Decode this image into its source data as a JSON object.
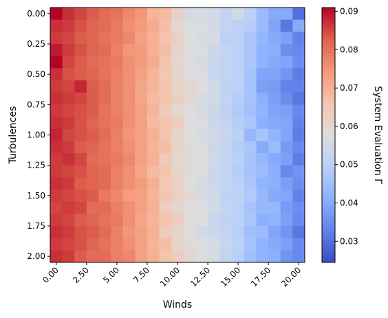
{
  "chart_data": {
    "type": "heatmap",
    "title": "",
    "xlabel": "Winds",
    "ylabel": "Turbulences",
    "colorbar_label": "System Evaluation Γ",
    "colormap": "coolwarm",
    "x_range": [
      0,
      20
    ],
    "y_range": [
      0,
      2
    ],
    "n_cols": 21,
    "n_rows": 21,
    "x_ticks": [
      "0.00",
      "2.50",
      "5.00",
      "7.50",
      "10.00",
      "12.50",
      "15.00",
      "17.50",
      "20.00"
    ],
    "y_ticks": [
      "0.00",
      "0.25",
      "0.50",
      "0.75",
      "1.00",
      "1.25",
      "1.50",
      "1.75",
      "2.00"
    ],
    "colorbar_ticks": [
      "0.03",
      "0.04",
      "0.05",
      "0.06",
      "0.07",
      "0.08",
      "0.09"
    ],
    "colorbar_range": [
      0.0245,
      0.091
    ],
    "grid": false,
    "values": [
      [
        0.091,
        0.087,
        0.085,
        0.083,
        0.081,
        0.08,
        0.077,
        0.075,
        0.069,
        0.068,
        0.062,
        0.056,
        0.056,
        0.055,
        0.052,
        0.055,
        0.05,
        0.044,
        0.04,
        0.04,
        0.03
      ],
      [
        0.087,
        0.086,
        0.084,
        0.082,
        0.081,
        0.079,
        0.076,
        0.074,
        0.071,
        0.067,
        0.06,
        0.057,
        0.057,
        0.055,
        0.052,
        0.05,
        0.049,
        0.044,
        0.039,
        0.031,
        0.04
      ],
      [
        0.086,
        0.085,
        0.083,
        0.082,
        0.08,
        0.079,
        0.077,
        0.073,
        0.07,
        0.066,
        0.062,
        0.058,
        0.056,
        0.056,
        0.05,
        0.05,
        0.047,
        0.043,
        0.04,
        0.038,
        0.033
      ],
      [
        0.089,
        0.086,
        0.084,
        0.082,
        0.081,
        0.078,
        0.075,
        0.074,
        0.07,
        0.067,
        0.061,
        0.058,
        0.057,
        0.054,
        0.052,
        0.05,
        0.047,
        0.042,
        0.041,
        0.035,
        0.034
      ],
      [
        0.091,
        0.085,
        0.083,
        0.081,
        0.08,
        0.079,
        0.076,
        0.074,
        0.071,
        0.066,
        0.06,
        0.057,
        0.056,
        0.053,
        0.052,
        0.05,
        0.047,
        0.042,
        0.04,
        0.039,
        0.035
      ],
      [
        0.087,
        0.084,
        0.083,
        0.082,
        0.08,
        0.078,
        0.076,
        0.073,
        0.069,
        0.065,
        0.061,
        0.058,
        0.057,
        0.053,
        0.052,
        0.05,
        0.046,
        0.039,
        0.039,
        0.036,
        0.032
      ],
      [
        0.086,
        0.085,
        0.088,
        0.083,
        0.081,
        0.078,
        0.076,
        0.072,
        0.069,
        0.066,
        0.061,
        0.06,
        0.058,
        0.055,
        0.051,
        0.05,
        0.046,
        0.038,
        0.037,
        0.033,
        0.033
      ],
      [
        0.087,
        0.086,
        0.085,
        0.083,
        0.081,
        0.078,
        0.076,
        0.072,
        0.068,
        0.066,
        0.062,
        0.06,
        0.056,
        0.055,
        0.052,
        0.049,
        0.046,
        0.041,
        0.038,
        0.035,
        0.031
      ],
      [
        0.086,
        0.085,
        0.084,
        0.083,
        0.08,
        0.078,
        0.076,
        0.073,
        0.069,
        0.064,
        0.06,
        0.058,
        0.056,
        0.054,
        0.051,
        0.048,
        0.045,
        0.042,
        0.039,
        0.038,
        0.034
      ],
      [
        0.087,
        0.086,
        0.084,
        0.082,
        0.08,
        0.079,
        0.076,
        0.073,
        0.068,
        0.066,
        0.063,
        0.058,
        0.057,
        0.054,
        0.052,
        0.049,
        0.047,
        0.041,
        0.04,
        0.039,
        0.033
      ],
      [
        0.088,
        0.085,
        0.084,
        0.083,
        0.081,
        0.078,
        0.075,
        0.073,
        0.07,
        0.066,
        0.061,
        0.058,
        0.056,
        0.055,
        0.053,
        0.05,
        0.043,
        0.046,
        0.042,
        0.039,
        0.032
      ],
      [
        0.087,
        0.086,
        0.083,
        0.082,
        0.08,
        0.078,
        0.076,
        0.073,
        0.069,
        0.067,
        0.061,
        0.059,
        0.057,
        0.054,
        0.052,
        0.049,
        0.047,
        0.04,
        0.044,
        0.037,
        0.034
      ],
      [
        0.086,
        0.087,
        0.085,
        0.081,
        0.08,
        0.079,
        0.077,
        0.073,
        0.07,
        0.064,
        0.06,
        0.059,
        0.058,
        0.055,
        0.052,
        0.05,
        0.046,
        0.043,
        0.04,
        0.038,
        0.032
      ],
      [
        0.086,
        0.085,
        0.084,
        0.082,
        0.081,
        0.078,
        0.076,
        0.072,
        0.068,
        0.066,
        0.061,
        0.059,
        0.057,
        0.054,
        0.052,
        0.049,
        0.046,
        0.044,
        0.041,
        0.034,
        0.036
      ],
      [
        0.087,
        0.086,
        0.083,
        0.082,
        0.081,
        0.078,
        0.076,
        0.074,
        0.07,
        0.065,
        0.062,
        0.058,
        0.056,
        0.054,
        0.052,
        0.05,
        0.047,
        0.042,
        0.041,
        0.038,
        0.035
      ],
      [
        0.086,
        0.085,
        0.084,
        0.083,
        0.079,
        0.077,
        0.074,
        0.073,
        0.069,
        0.066,
        0.062,
        0.059,
        0.056,
        0.055,
        0.051,
        0.051,
        0.048,
        0.043,
        0.04,
        0.039,
        0.033
      ],
      [
        0.085,
        0.086,
        0.085,
        0.081,
        0.081,
        0.078,
        0.076,
        0.073,
        0.07,
        0.063,
        0.06,
        0.058,
        0.057,
        0.055,
        0.052,
        0.05,
        0.046,
        0.043,
        0.043,
        0.037,
        0.035
      ],
      [
        0.086,
        0.085,
        0.083,
        0.082,
        0.08,
        0.079,
        0.076,
        0.072,
        0.069,
        0.066,
        0.063,
        0.058,
        0.058,
        0.053,
        0.051,
        0.05,
        0.047,
        0.041,
        0.042,
        0.038,
        0.034
      ],
      [
        0.087,
        0.086,
        0.084,
        0.083,
        0.081,
        0.078,
        0.075,
        0.073,
        0.07,
        0.064,
        0.061,
        0.058,
        0.055,
        0.054,
        0.052,
        0.049,
        0.045,
        0.044,
        0.039,
        0.036,
        0.031
      ],
      [
        0.086,
        0.085,
        0.084,
        0.082,
        0.08,
        0.078,
        0.076,
        0.073,
        0.069,
        0.067,
        0.061,
        0.059,
        0.057,
        0.056,
        0.053,
        0.05,
        0.046,
        0.042,
        0.04,
        0.038,
        0.034
      ],
      [
        0.087,
        0.086,
        0.083,
        0.081,
        0.081,
        0.078,
        0.077,
        0.073,
        0.07,
        0.066,
        0.063,
        0.06,
        0.057,
        0.056,
        0.052,
        0.049,
        0.045,
        0.042,
        0.041,
        0.036,
        0.034
      ]
    ]
  }
}
